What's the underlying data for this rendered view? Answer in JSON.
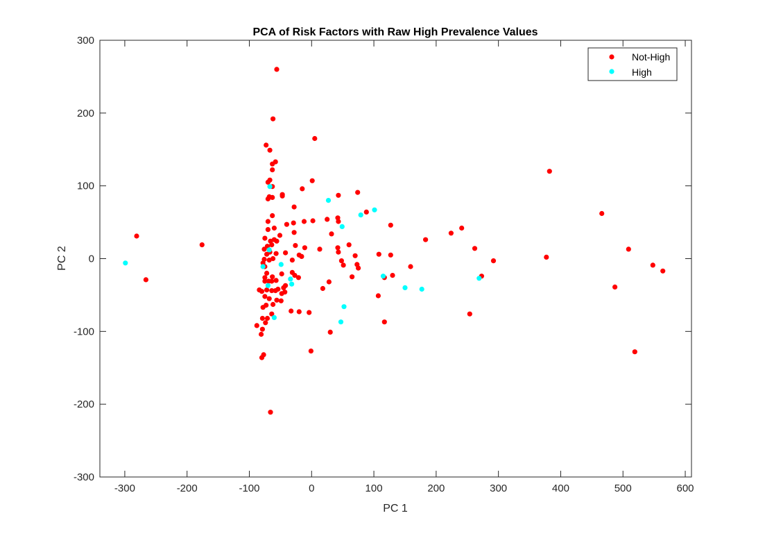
{
  "chart_data": {
    "type": "scatter",
    "title": "PCA of Risk Factors with Raw High Prevalence Values",
    "xlabel": "PC 1",
    "ylabel": "PC 2",
    "xlim": [
      -340,
      610
    ],
    "ylim": [
      -300,
      300
    ],
    "xticks": [
      -300,
      -200,
      -100,
      0,
      100,
      200,
      300,
      400,
      500,
      600
    ],
    "yticks": [
      -300,
      -200,
      -100,
      0,
      100,
      200,
      300
    ],
    "xtick_labels": [
      "-300",
      "-200",
      "-100",
      "0",
      "100",
      "200",
      "300",
      "400",
      "500",
      "600"
    ],
    "ytick_labels": [
      "-300",
      "-200",
      "-100",
      "0",
      "100",
      "200",
      "300"
    ],
    "grid": false,
    "legend_position": "top-right",
    "series": [
      {
        "name": "Not-High",
        "color": "#ff0000",
        "points": [
          [
            -56,
            260
          ],
          [
            -62,
            192
          ],
          [
            5,
            165
          ],
          [
            -73,
            156
          ],
          [
            -67,
            149
          ],
          [
            -58,
            133
          ],
          [
            -63,
            130
          ],
          [
            -63,
            122
          ],
          [
            -67,
            108
          ],
          [
            -70,
            105
          ],
          [
            1,
            107
          ],
          [
            382,
            120
          ],
          [
            -63,
            99
          ],
          [
            -15,
            96
          ],
          [
            74,
            91
          ],
          [
            43,
            87
          ],
          [
            -47,
            88
          ],
          [
            -47,
            86
          ],
          [
            -68,
            85
          ],
          [
            -63,
            84
          ],
          [
            -70,
            82
          ],
          [
            -28,
            71
          ],
          [
            88,
            64
          ],
          [
            466,
            62
          ],
          [
            -63,
            59
          ],
          [
            -70,
            51
          ],
          [
            -40,
            47
          ],
          [
            -29,
            49
          ],
          [
            -12,
            51
          ],
          [
            2,
            52
          ],
          [
            25,
            54
          ],
          [
            42,
            56
          ],
          [
            43,
            51
          ],
          [
            127,
            46
          ],
          [
            -60,
            42
          ],
          [
            -70,
            40
          ],
          [
            241,
            42
          ],
          [
            224,
            35
          ],
          [
            -51,
            32
          ],
          [
            -28,
            36
          ],
          [
            32,
            34
          ],
          [
            -75,
            28
          ],
          [
            -60,
            26
          ],
          [
            -56,
            24
          ],
          [
            -66,
            24
          ],
          [
            -71,
            17
          ],
          [
            -76,
            13
          ],
          [
            -64,
            19
          ],
          [
            -26,
            18
          ],
          [
            -11,
            15
          ],
          [
            13,
            13
          ],
          [
            42,
            15
          ],
          [
            60,
            19
          ],
          [
            183,
            26
          ],
          [
            -67,
            9
          ],
          [
            -72,
            6
          ],
          [
            -57,
            7
          ],
          [
            -42,
            8
          ],
          [
            -20,
            5
          ],
          [
            -16,
            3
          ],
          [
            -31,
            -2
          ],
          [
            43,
            9
          ],
          [
            70,
            4
          ],
          [
            108,
            6
          ],
          [
            127,
            5
          ],
          [
            262,
            14
          ],
          [
            509,
            13
          ],
          [
            -76,
            -1
          ],
          [
            -78,
            -6
          ],
          [
            -62,
            0
          ],
          [
            -68,
            -2
          ],
          [
            -75,
            -11
          ],
          [
            48,
            -3
          ],
          [
            51,
            -9
          ],
          [
            73,
            -8
          ],
          [
            75,
            -13
          ],
          [
            -72,
            -20
          ],
          [
            -75,
            -26
          ],
          [
            -63,
            -25
          ],
          [
            -48,
            -21
          ],
          [
            -31,
            -19
          ],
          [
            -27,
            -23
          ],
          [
            -21,
            -26
          ],
          [
            292,
            -3
          ],
          [
            377,
            2
          ],
          [
            548,
            -9
          ],
          [
            564,
            -17
          ],
          [
            159,
            -11
          ],
          [
            130,
            -23
          ],
          [
            117,
            -26
          ],
          [
            65,
            -25
          ],
          [
            28,
            -32
          ],
          [
            -75,
            -31
          ],
          [
            -69,
            -31
          ],
          [
            -64,
            -31
          ],
          [
            -57,
            -30
          ],
          [
            -42,
            -37
          ],
          [
            -45,
            -40
          ],
          [
            -84,
            -43
          ],
          [
            -80,
            -45
          ],
          [
            -72,
            -43
          ],
          [
            -64,
            -44
          ],
          [
            -58,
            -44
          ],
          [
            -54,
            -42
          ],
          [
            -43,
            -46
          ],
          [
            -48,
            -48
          ],
          [
            -75,
            -52
          ],
          [
            -68,
            -55
          ],
          [
            -56,
            -57
          ],
          [
            -73,
            -64
          ],
          [
            -78,
            -67
          ],
          [
            -62,
            -63
          ],
          [
            -49,
            -58
          ],
          [
            18,
            -41
          ],
          [
            107,
            -51
          ],
          [
            273,
            -24
          ],
          [
            487,
            -39
          ],
          [
            -79,
            -82
          ],
          [
            -71,
            -82
          ],
          [
            -64,
            -76
          ],
          [
            -74,
            -88
          ],
          [
            -88,
            -92
          ],
          [
            -79,
            -97
          ],
          [
            -33,
            -72
          ],
          [
            -20,
            -73
          ],
          [
            -4,
            -74
          ],
          [
            117,
            -87
          ],
          [
            254,
            -76
          ],
          [
            -81,
            -104
          ],
          [
            -1,
            -127
          ],
          [
            30,
            -101
          ],
          [
            519,
            -128
          ],
          [
            -77,
            -132
          ],
          [
            -80,
            -136
          ],
          [
            -281,
            31
          ],
          [
            -176,
            19
          ],
          [
            -266,
            -29
          ],
          [
            -66,
            -211
          ]
        ]
      },
      {
        "name": "High",
        "color": "#00ffff",
        "points": [
          [
            -299,
            -6
          ],
          [
            -67,
            99
          ],
          [
            27,
            80
          ],
          [
            101,
            67
          ],
          [
            79,
            60
          ],
          [
            49,
            44
          ],
          [
            -68,
            12
          ],
          [
            -78,
            -11
          ],
          [
            -70,
            -37
          ],
          [
            -49,
            -8
          ],
          [
            -34,
            -28
          ],
          [
            -32,
            -35
          ],
          [
            -60,
            -81
          ],
          [
            52,
            -66
          ],
          [
            47,
            -87
          ],
          [
            115,
            -24
          ],
          [
            150,
            -40
          ],
          [
            177,
            -42
          ],
          [
            269,
            -27
          ]
        ]
      }
    ]
  }
}
